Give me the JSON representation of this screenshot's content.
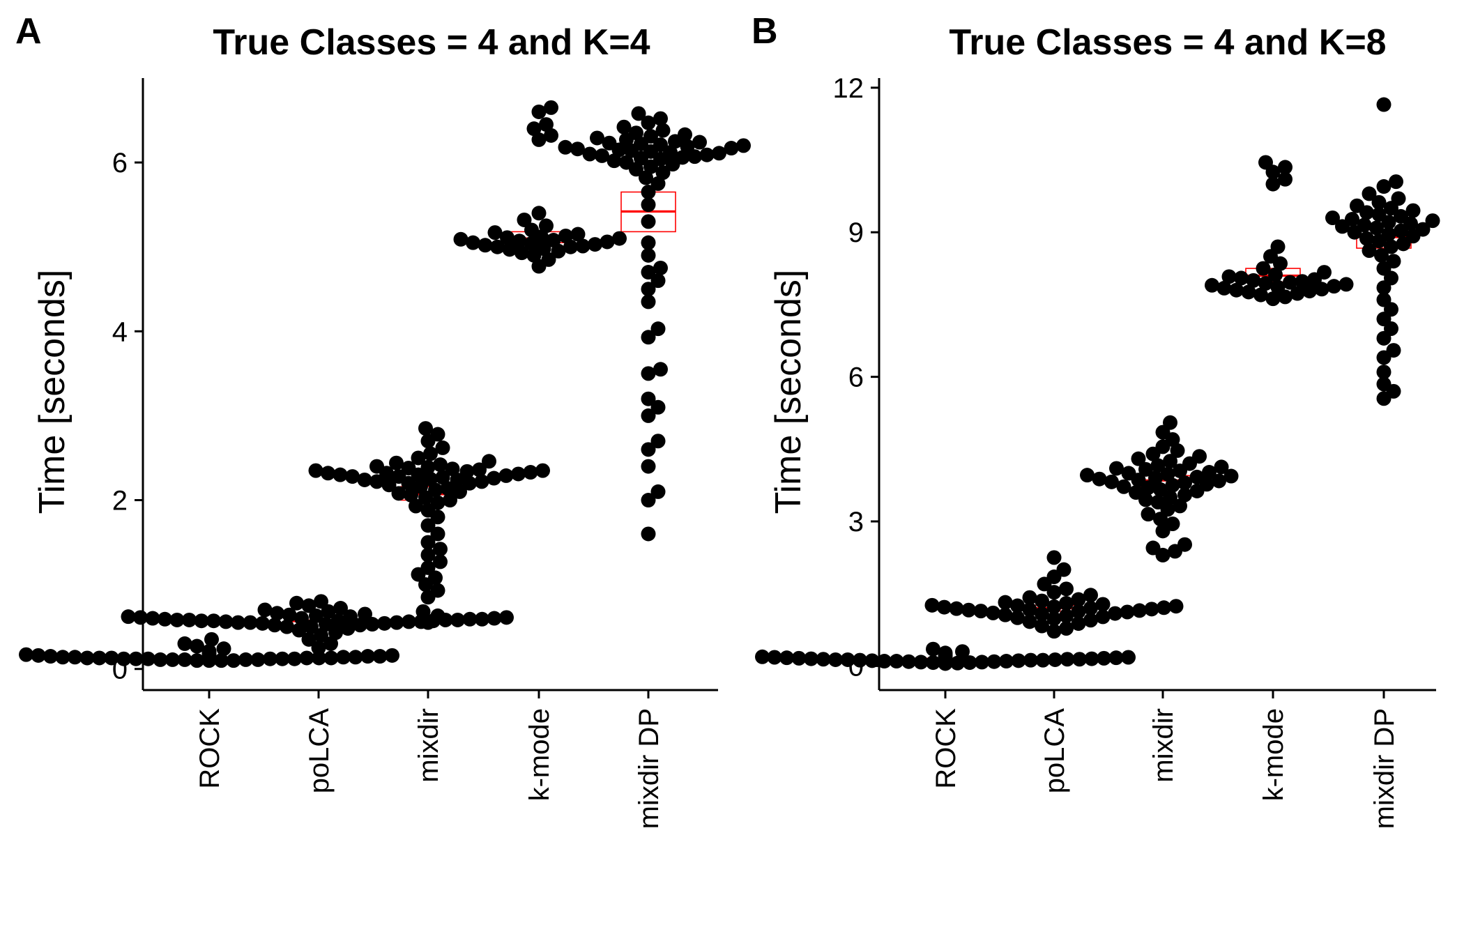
{
  "chart_data": [
    {
      "panel": "A",
      "type": "scatter",
      "title": "True Classes = 4 and K=4",
      "ylabel": "Time [seconds]",
      "xlabel": "",
      "categories": [
        "ROCK",
        "poLCA",
        "mixdir",
        "k-mode",
        "mixdir DP"
      ],
      "yticks": [
        0,
        2,
        4,
        6
      ],
      "ylim": [
        -0.25,
        7.0
      ],
      "grid": false,
      "legend": "none",
      "point_color": "#000000",
      "box_color": "#ff0000",
      "summary": [
        {
          "category": "ROCK",
          "center": 0.13,
          "lower": 0.12,
          "upper": 0.14
        },
        {
          "category": "poLCA",
          "center": 0.57,
          "lower": 0.56,
          "upper": 0.58
        },
        {
          "category": "mixdir",
          "center": 2.07,
          "lower": 2.0,
          "upper": 2.16
        },
        {
          "category": "k-mode",
          "center": 5.1,
          "lower": 5.05,
          "upper": 5.18
        },
        {
          "category": "mixdir DP",
          "center": 5.42,
          "lower": 5.18,
          "upper": 5.65
        }
      ],
      "points": [
        {
          "category": "ROCK",
          "y": [
            0.1,
            0.1,
            0.1,
            0.1,
            0.11,
            0.11,
            0.11,
            0.11,
            0.11,
            0.12,
            0.12,
            0.12,
            0.12,
            0.12,
            0.12,
            0.13,
            0.13,
            0.13,
            0.13,
            0.13,
            0.13,
            0.14,
            0.14,
            0.14,
            0.14,
            0.15,
            0.15,
            0.15,
            0.16,
            0.16,
            0.17,
            0.18,
            0.19,
            0.21,
            0.24,
            0.27,
            0.3,
            0.35
          ]
        },
        {
          "category": "poLCA",
          "y": [
            0.25,
            0.3,
            0.35,
            0.4,
            0.43,
            0.46,
            0.48,
            0.5,
            0.5,
            0.52,
            0.52,
            0.53,
            0.53,
            0.54,
            0.54,
            0.55,
            0.55,
            0.55,
            0.56,
            0.56,
            0.56,
            0.57,
            0.57,
            0.57,
            0.57,
            0.58,
            0.58,
            0.58,
            0.58,
            0.59,
            0.59,
            0.59,
            0.6,
            0.6,
            0.6,
            0.61,
            0.61,
            0.62,
            0.62,
            0.63,
            0.64,
            0.65,
            0.66,
            0.68,
            0.7,
            0.72,
            0.75,
            0.78,
            0.8
          ]
        },
        {
          "category": "mixdir",
          "y": [
            0.55,
            0.63,
            0.68,
            0.85,
            0.93,
            1.0,
            1.08,
            1.12,
            1.2,
            1.27,
            1.35,
            1.42,
            1.5,
            1.6,
            1.7,
            1.8,
            1.88,
            1.93,
            1.97,
            2.0,
            2.03,
            2.06,
            2.08,
            2.1,
            2.12,
            2.14,
            2.16,
            2.18,
            2.2,
            2.2,
            2.22,
            2.22,
            2.24,
            2.24,
            2.25,
            2.26,
            2.27,
            2.28,
            2.28,
            2.29,
            2.3,
            2.3,
            2.31,
            2.32,
            2.32,
            2.33,
            2.34,
            2.35,
            2.35,
            2.36,
            2.37,
            2.38,
            2.39,
            2.4,
            2.42,
            2.44,
            2.46,
            2.5,
            2.55,
            2.62,
            2.7,
            2.78,
            2.85
          ]
        },
        {
          "category": "k-mode",
          "y": [
            4.77,
            4.85,
            4.9,
            4.93,
            4.95,
            4.97,
            4.98,
            5.0,
            5.0,
            5.01,
            5.02,
            5.03,
            5.04,
            5.05,
            5.06,
            5.07,
            5.08,
            5.09,
            5.1,
            5.11,
            5.12,
            5.13,
            5.15,
            5.17,
            5.2,
            5.25,
            5.32,
            5.4,
            6.27,
            6.32,
            6.4,
            6.45,
            6.6,
            6.65
          ]
        },
        {
          "category": "mixdir DP",
          "y": [
            1.6,
            2.0,
            2.1,
            2.4,
            2.6,
            2.7,
            3.0,
            3.1,
            3.2,
            3.5,
            3.55,
            3.93,
            4.03,
            4.35,
            4.5,
            4.6,
            4.7,
            4.75,
            4.9,
            5.05,
            5.3,
            5.5,
            5.65,
            5.75,
            5.82,
            5.88,
            5.92,
            5.95,
            5.98,
            6.0,
            6.02,
            6.04,
            6.05,
            6.06,
            6.07,
            6.08,
            6.09,
            6.1,
            6.11,
            6.12,
            6.13,
            6.14,
            6.15,
            6.16,
            6.17,
            6.18,
            6.19,
            6.2,
            6.21,
            6.22,
            6.23,
            6.24,
            6.25,
            6.27,
            6.29,
            6.31,
            6.33,
            6.35,
            6.38,
            6.42,
            6.47,
            6.52,
            6.58
          ]
        }
      ]
    },
    {
      "panel": "B",
      "type": "scatter",
      "title": "True Classes = 4 and K=8",
      "ylabel": "Time [seconds]",
      "xlabel": "",
      "categories": [
        "ROCK",
        "poLCA",
        "mixdir",
        "k-mode",
        "mixdir DP"
      ],
      "yticks": [
        0,
        3,
        6,
        9,
        12
      ],
      "ylim": [
        -0.5,
        12.2
      ],
      "grid": false,
      "legend": "none",
      "point_color": "#000000",
      "box_color": "#ff0000",
      "summary": [
        {
          "category": "ROCK",
          "center": 0.14,
          "lower": 0.12,
          "upper": 0.16
        },
        {
          "category": "poLCA",
          "center": 1.2,
          "lower": 1.14,
          "upper": 1.26
        },
        {
          "category": "mixdir",
          "center": 3.85,
          "lower": 3.72,
          "upper": 3.95
        },
        {
          "category": "k-mode",
          "center": 8.1,
          "lower": 7.97,
          "upper": 8.25
        },
        {
          "category": "mixdir DP",
          "center": 8.9,
          "lower": 8.67,
          "upper": 9.05
        }
      ],
      "points": [
        {
          "category": "ROCK",
          "y": [
            0.05,
            0.06,
            0.07,
            0.07,
            0.08,
            0.08,
            0.09,
            0.09,
            0.1,
            0.1,
            0.1,
            0.11,
            0.11,
            0.12,
            0.12,
            0.12,
            0.13,
            0.13,
            0.13,
            0.14,
            0.14,
            0.14,
            0.15,
            0.15,
            0.16,
            0.16,
            0.17,
            0.17,
            0.18,
            0.18,
            0.19,
            0.2,
            0.21,
            0.22,
            0.24,
            0.27,
            0.3,
            0.35
          ]
        },
        {
          "category": "poLCA",
          "y": [
            0.72,
            0.78,
            0.83,
            0.88,
            0.92,
            0.95,
            0.98,
            1.0,
            1.02,
            1.04,
            1.06,
            1.08,
            1.09,
            1.1,
            1.12,
            1.13,
            1.14,
            1.15,
            1.16,
            1.17,
            1.18,
            1.19,
            1.2,
            1.21,
            1.22,
            1.23,
            1.24,
            1.25,
            1.26,
            1.28,
            1.3,
            1.32,
            1.35,
            1.38,
            1.42,
            1.47,
            1.53,
            1.6,
            1.7,
            1.85,
            2.0,
            2.25
          ]
        },
        {
          "category": "mixdir",
          "y": [
            2.3,
            2.38,
            2.45,
            2.52,
            2.8,
            2.95,
            3.05,
            3.15,
            3.25,
            3.32,
            3.4,
            3.45,
            3.5,
            3.55,
            3.6,
            3.63,
            3.66,
            3.7,
            3.72,
            3.75,
            3.77,
            3.8,
            3.82,
            3.84,
            3.86,
            3.88,
            3.9,
            3.92,
            3.94,
            3.96,
            3.98,
            4.0,
            4.02,
            4.05,
            4.08,
            4.1,
            4.13,
            4.16,
            4.2,
            4.25,
            4.3,
            4.35,
            4.4,
            4.47,
            4.55,
            4.7,
            4.85,
            5.05
          ]
        },
        {
          "category": "k-mode",
          "y": [
            7.62,
            7.66,
            7.7,
            7.73,
            7.76,
            7.78,
            7.8,
            7.82,
            7.84,
            7.86,
            7.88,
            7.9,
            7.92,
            7.94,
            7.96,
            7.98,
            8.0,
            8.02,
            8.05,
            8.08,
            8.12,
            8.17,
            8.25,
            8.35,
            8.5,
            8.7,
            10.0,
            10.1,
            10.25,
            10.35,
            10.45
          ]
        },
        {
          "category": "mixdir DP",
          "y": [
            5.55,
            5.7,
            5.85,
            6.1,
            6.4,
            6.55,
            6.8,
            7.0,
            7.2,
            7.4,
            7.6,
            7.85,
            8.05,
            8.25,
            8.4,
            8.52,
            8.62,
            8.7,
            8.76,
            8.82,
            8.87,
            8.92,
            8.96,
            9.0,
            9.03,
            9.06,
            9.09,
            9.12,
            9.15,
            9.18,
            9.21,
            9.24,
            9.27,
            9.3,
            9.33,
            9.37,
            9.41,
            9.45,
            9.5,
            9.55,
            9.62,
            9.7,
            9.8,
            9.95,
            10.05,
            11.65
          ]
        }
      ]
    }
  ]
}
